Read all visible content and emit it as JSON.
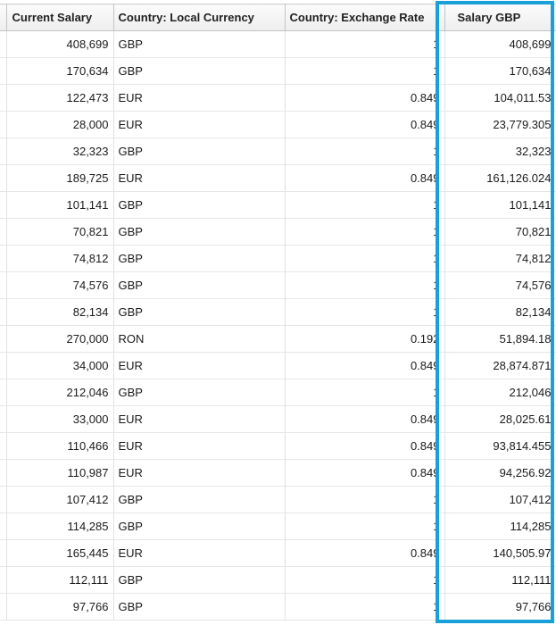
{
  "table": {
    "headers": [
      "Current Salary",
      "Country: Local Currency",
      "Country: Exchange Rate",
      "Salary GBP"
    ],
    "rows": [
      [
        "408,699",
        "GBP",
        "1",
        "408,699"
      ],
      [
        "170,634",
        "GBP",
        "1",
        "170,634"
      ],
      [
        "122,473",
        "EUR",
        "0.849",
        "104,011.53"
      ],
      [
        "28,000",
        "EUR",
        "0.849",
        "23,779.305"
      ],
      [
        "32,323",
        "GBP",
        "1",
        "32,323"
      ],
      [
        "189,725",
        "EUR",
        "0.849",
        "161,126.024"
      ],
      [
        "101,141",
        "GBP",
        "1",
        "101,141"
      ],
      [
        "70,821",
        "GBP",
        "1",
        "70,821"
      ],
      [
        "74,812",
        "GBP",
        "1",
        "74,812"
      ],
      [
        "74,576",
        "GBP",
        "1",
        "74,576"
      ],
      [
        "82,134",
        "GBP",
        "1",
        "82,134"
      ],
      [
        "270,000",
        "RON",
        "0.192",
        "51,894.18"
      ],
      [
        "34,000",
        "EUR",
        "0.849",
        "28,874.871"
      ],
      [
        "212,046",
        "GBP",
        "1",
        "212,046"
      ],
      [
        "33,000",
        "EUR",
        "0.849",
        "28,025.61"
      ],
      [
        "110,466",
        "EUR",
        "0.849",
        "93,814.455"
      ],
      [
        "110,987",
        "EUR",
        "0.849",
        "94,256.92"
      ],
      [
        "107,412",
        "GBP",
        "1",
        "107,412"
      ],
      [
        "114,285",
        "GBP",
        "1",
        "114,285"
      ],
      [
        "165,445",
        "EUR",
        "0.849",
        "140,505.97"
      ],
      [
        "112,111",
        "GBP",
        "1",
        "112,111"
      ],
      [
        "97,766",
        "GBP",
        "1",
        "97,766"
      ]
    ]
  },
  "highlight": {
    "column": "Salary GBP",
    "color": "#1aa0d8"
  }
}
